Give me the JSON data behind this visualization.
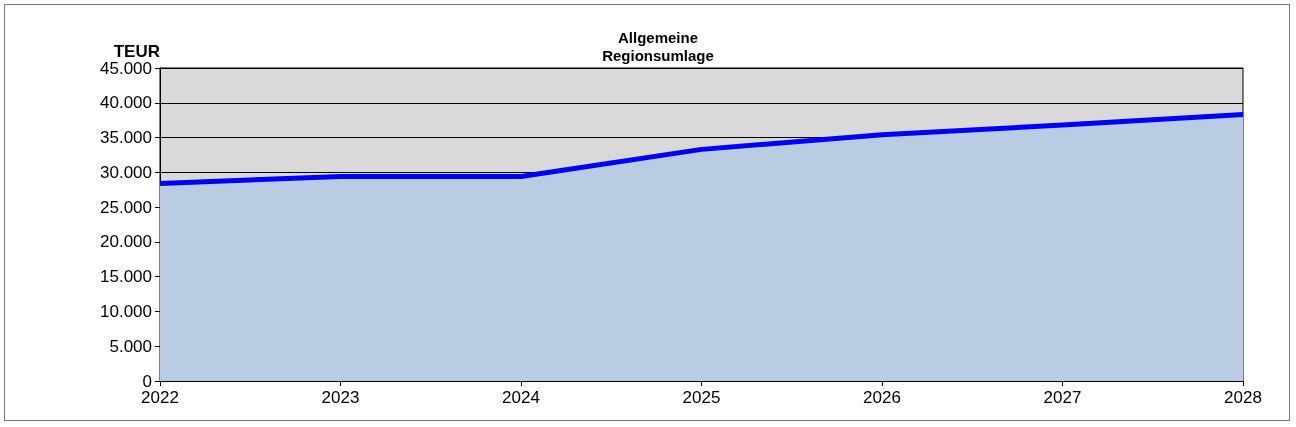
{
  "chart_data": {
    "type": "area",
    "title": "Allgemeine\nRegionsumlage",
    "ylabel": "TEUR",
    "categories": [
      "2022",
      "2023",
      "2024",
      "2025",
      "2026",
      "2027",
      "2028"
    ],
    "series": [
      {
        "color": "#0000ff",
        "values": [
          28400,
          29400,
          29400,
          33300,
          35400,
          36800,
          38300
        ]
      }
    ],
    "ylim": [
      0,
      45000
    ],
    "yticks": [
      {
        "value": 0,
        "label": "0"
      },
      {
        "value": 5000,
        "label": "5.000"
      },
      {
        "value": 10000,
        "label": "10.000"
      },
      {
        "value": 15000,
        "label": "15.000"
      },
      {
        "value": 20000,
        "label": "20.000"
      },
      {
        "value": 25000,
        "label": "25.000"
      },
      {
        "value": 30000,
        "label": "30.000"
      },
      {
        "value": 35000,
        "label": "35.000"
      },
      {
        "value": 40000,
        "label": "40.000"
      },
      {
        "value": 45000,
        "label": "45.000"
      }
    ],
    "grid": "y",
    "marker": "none"
  }
}
